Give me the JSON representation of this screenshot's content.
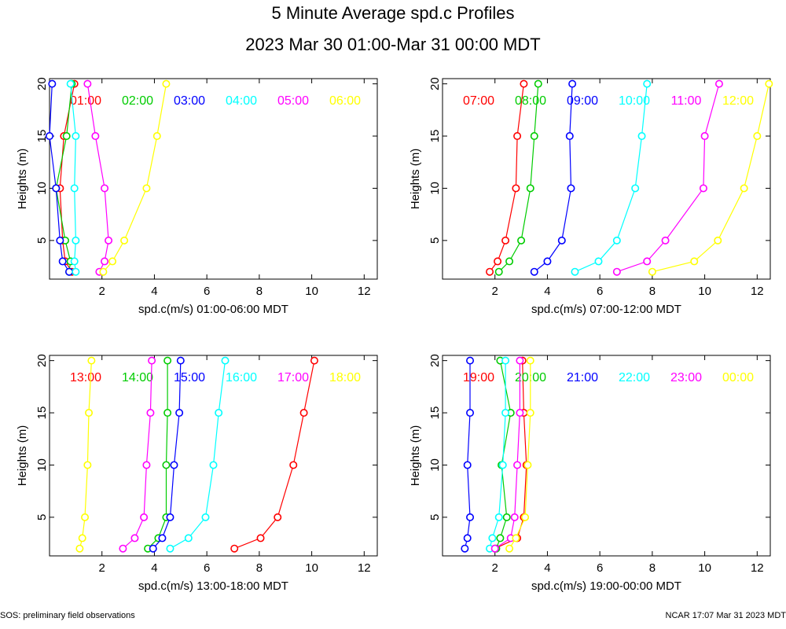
{
  "title": "5 Minute Average spd.c Profiles",
  "subtitle": "2023 Mar 30 01:00-Mar 31 00:00 MDT",
  "footer_left": "SOS: preliminary field observations",
  "footer_right": "NCAR 17:07 Mar 31 2023 MDT",
  "chart_data": [
    {
      "type": "line",
      "xlabel": "spd.c(m/s) 01:00-06:00 MDT",
      "ylabel": "Heights (m)",
      "xlim": [
        0,
        12.5
      ],
      "ylim": [
        1.3,
        20.5
      ],
      "xticks": [
        2,
        4,
        6,
        8,
        10,
        12
      ],
      "yticks": [
        5,
        10,
        15,
        20
      ],
      "heights": [
        2,
        3,
        5,
        10,
        15,
        20
      ],
      "series": [
        {
          "name": "01:00",
          "color": "#ff0000",
          "values": [
            0.85,
            0.6,
            0.5,
            0.4,
            0.55,
            0.95
          ]
        },
        {
          "name": "02:00",
          "color": "#00cc00",
          "values": [
            0.75,
            0.8,
            0.6,
            0.25,
            0.65,
            0.85
          ]
        },
        {
          "name": "03:00",
          "color": "#0000ff",
          "values": [
            0.75,
            0.5,
            0.4,
            0.25,
            0.0,
            0.1
          ]
        },
        {
          "name": "04:00",
          "color": "#00ffff",
          "values": [
            1.0,
            0.95,
            1.0,
            0.95,
            1.0,
            0.8
          ]
        },
        {
          "name": "05:00",
          "color": "#ff00ff",
          "values": [
            1.9,
            2.1,
            2.25,
            2.1,
            1.75,
            1.45
          ]
        },
        {
          "name": "06:00",
          "color": "#ffff00",
          "values": [
            2.05,
            2.4,
            2.85,
            3.7,
            4.1,
            4.45
          ]
        }
      ]
    },
    {
      "type": "line",
      "xlabel": "spd.c(m/s) 07:00-12:00 MDT",
      "ylabel": "Heights (m)",
      "xlim": [
        0,
        12.5
      ],
      "ylim": [
        1.3,
        20.5
      ],
      "xticks": [
        2,
        4,
        6,
        8,
        10,
        12
      ],
      "yticks": [
        5,
        10,
        15,
        20
      ],
      "heights": [
        2,
        3,
        5,
        10,
        15,
        20
      ],
      "series": [
        {
          "name": "07:00",
          "color": "#ff0000",
          "values": [
            1.8,
            2.1,
            2.4,
            2.8,
            2.85,
            3.1
          ]
        },
        {
          "name": "08:00",
          "color": "#00cc00",
          "values": [
            2.15,
            2.55,
            3.0,
            3.35,
            3.5,
            3.65
          ]
        },
        {
          "name": "09:00",
          "color": "#0000ff",
          "values": [
            3.5,
            4.0,
            4.55,
            4.9,
            4.85,
            4.95
          ]
        },
        {
          "name": "10:00",
          "color": "#00ffff",
          "values": [
            5.05,
            5.95,
            6.65,
            7.35,
            7.6,
            7.8
          ]
        },
        {
          "name": "11:00",
          "color": "#ff00ff",
          "values": [
            6.65,
            7.8,
            8.5,
            9.95,
            10.0,
            10.55
          ]
        },
        {
          "name": "12:00",
          "color": "#ffff00",
          "values": [
            8.0,
            9.6,
            10.5,
            11.5,
            12.0,
            12.45
          ]
        }
      ]
    },
    {
      "type": "line",
      "xlabel": "spd.c(m/s) 13:00-18:00 MDT",
      "ylabel": "Heights (m)",
      "xlim": [
        0,
        12.5
      ],
      "ylim": [
        1.3,
        20.5
      ],
      "xticks": [
        2,
        4,
        6,
        8,
        10,
        12
      ],
      "yticks": [
        5,
        10,
        15,
        20
      ],
      "heights": [
        2,
        3,
        5,
        10,
        15,
        20
      ],
      "series": [
        {
          "name": "13:00",
          "color": "#ff0000",
          "values": [
            7.05,
            8.05,
            8.7,
            9.3,
            9.7,
            10.1
          ]
        },
        {
          "name": "14:00",
          "color": "#00cc00",
          "values": [
            3.75,
            4.15,
            4.45,
            4.45,
            4.5,
            4.5
          ]
        },
        {
          "name": "15:00",
          "color": "#0000ff",
          "values": [
            3.95,
            4.3,
            4.6,
            4.75,
            4.95,
            5.0
          ]
        },
        {
          "name": "16:00",
          "color": "#00ffff",
          "values": [
            4.6,
            5.3,
            5.95,
            6.25,
            6.45,
            6.7
          ]
        },
        {
          "name": "17:00",
          "color": "#ff00ff",
          "values": [
            2.8,
            3.25,
            3.6,
            3.7,
            3.85,
            3.9
          ]
        },
        {
          "name": "18:00",
          "color": "#ffff00",
          "values": [
            1.15,
            1.25,
            1.35,
            1.45,
            1.5,
            1.6
          ]
        }
      ]
    },
    {
      "type": "line",
      "xlabel": "spd.c(m/s) 19:00-00:00 MDT",
      "ylabel": "Heights (m)",
      "xlim": [
        0,
        12.5
      ],
      "ylim": [
        1.3,
        20.5
      ],
      "xticks": [
        2,
        4,
        6,
        8,
        10,
        12
      ],
      "yticks": [
        5,
        10,
        15,
        20
      ],
      "heights": [
        2,
        3,
        5,
        10,
        15,
        20
      ],
      "series": [
        {
          "name": "19:00",
          "color": "#ff0000",
          "values": [
            2.0,
            2.85,
            3.1,
            3.2,
            3.1,
            3.05
          ]
        },
        {
          "name": "20:00",
          "color": "#00cc00",
          "values": [
            2.05,
            2.2,
            2.45,
            2.25,
            2.6,
            2.2
          ]
        },
        {
          "name": "21:00",
          "color": "#0000ff",
          "values": [
            0.85,
            0.95,
            1.05,
            0.95,
            1.05,
            1.05
          ]
        },
        {
          "name": "22:00",
          "color": "#00ffff",
          "values": [
            1.8,
            1.9,
            2.15,
            2.3,
            2.4,
            2.4
          ]
        },
        {
          "name": "23:00",
          "color": "#ff00ff",
          "values": [
            2.0,
            2.6,
            2.75,
            2.85,
            2.95,
            2.95
          ]
        },
        {
          "name": "00:00",
          "color": "#ffff00",
          "values": [
            2.55,
            2.8,
            3.15,
            3.25,
            3.35,
            3.35
          ]
        }
      ]
    }
  ]
}
